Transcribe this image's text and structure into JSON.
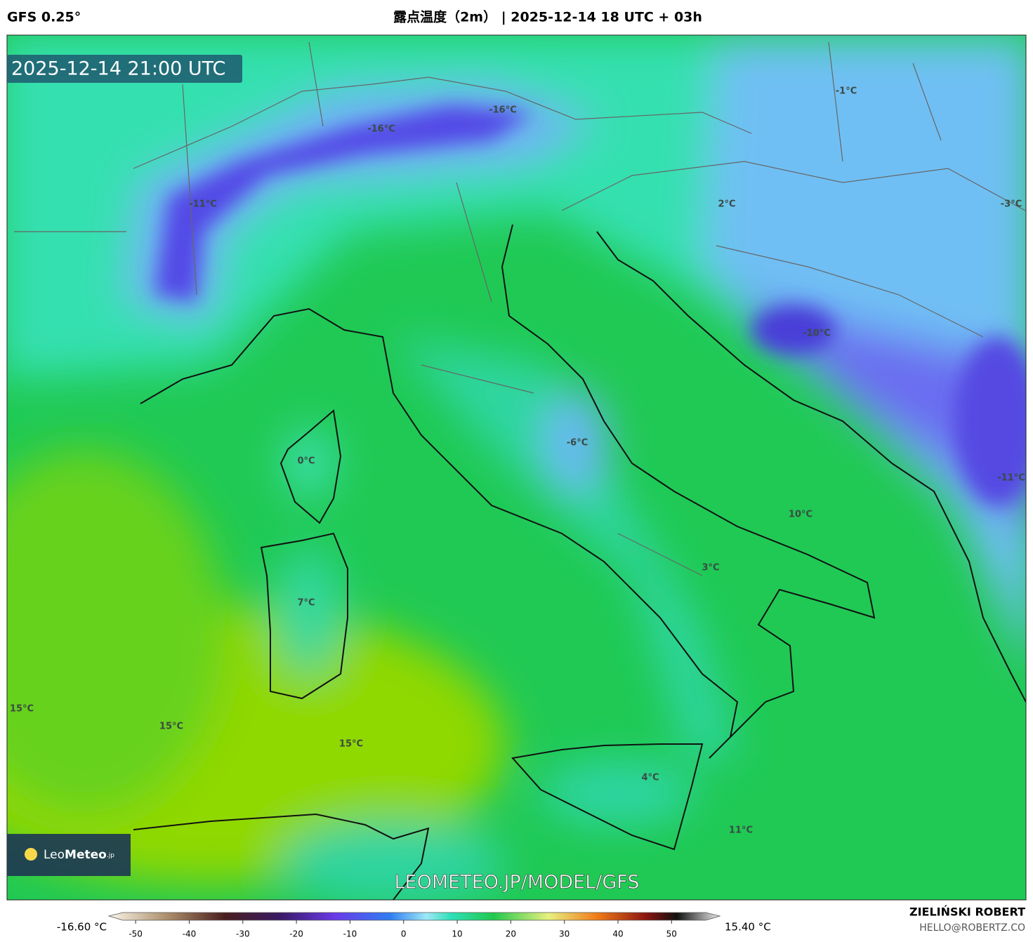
{
  "header": {
    "model": "GFS 0.25°",
    "title": "露点温度（2m） | 2025-12-14 18 UTC + 03h"
  },
  "map": {
    "valid_time": "2025-12-14 21:00 UTC",
    "logo": {
      "name_light": "Leo",
      "name_bold": "Meteo",
      "suffix": ".jp"
    },
    "watermark": "LEOMETEO.JP/MODEL/GFS",
    "labels": [
      "-1°C",
      "-16°C",
      "-16°C",
      "-11°C",
      "2°C",
      "-3°C",
      "-10°C",
      "-6°C",
      "0°C",
      "-11°C",
      "10°C",
      "3°C",
      "7°C",
      "15°C",
      "15°C",
      "15°C",
      "4°C",
      "11°C"
    ]
  },
  "colorbar": {
    "min_label": "-16.60 °C",
    "max_label": "15.40 °C",
    "lim": [
      -55,
      59
    ],
    "ticks": [
      -50,
      -40,
      -30,
      -20,
      -10,
      0,
      10,
      20,
      30,
      40,
      50
    ]
  },
  "footer": {
    "author": "ZIELIŃSKI ROBERT",
    "email": "HELLO@ROBERTZ.CO"
  }
}
